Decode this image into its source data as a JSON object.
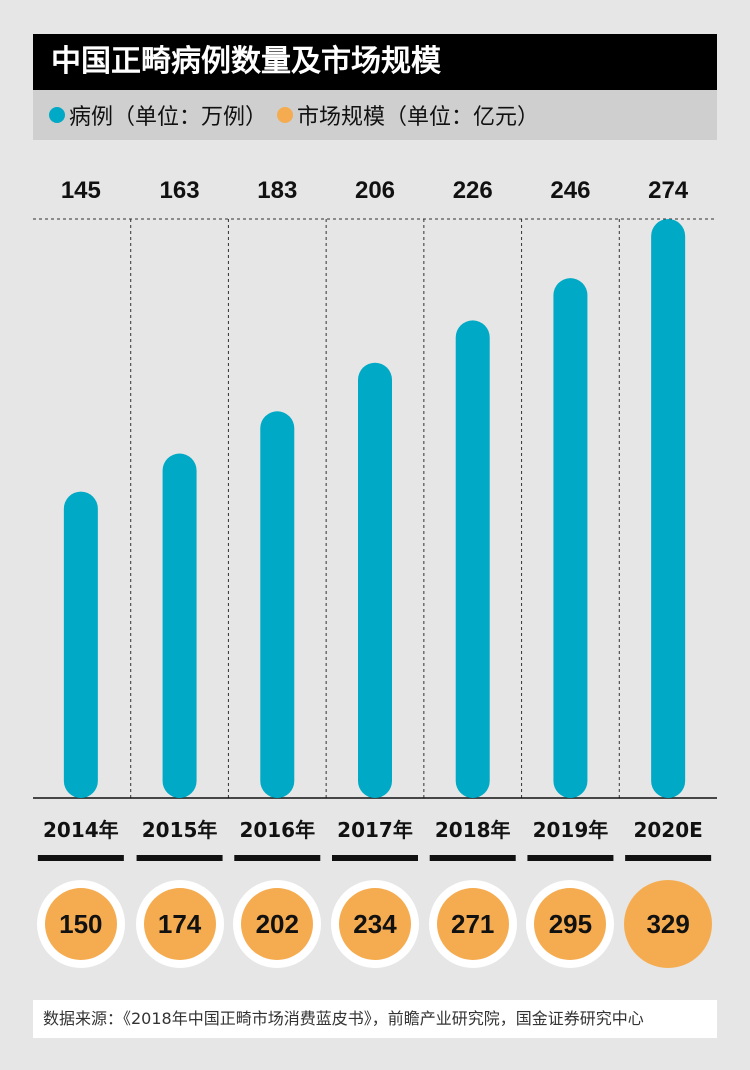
{
  "title": "中国正畸病例数量及市场规模",
  "legend": {
    "cases_label": "病例（单位：万例）",
    "market_label": "市场规模（单位：亿元）"
  },
  "colors": {
    "cases": "#00a9c5",
    "market": "#f5ac50"
  },
  "chart_data": {
    "type": "bar",
    "categories": [
      "2014年",
      "2015年",
      "2016年",
      "2017年",
      "2018年",
      "2019年",
      "2020E"
    ],
    "series": [
      {
        "name": "病例（单位：万例）",
        "values": [
          145,
          163,
          183,
          206,
          226,
          246,
          274
        ]
      },
      {
        "name": "市场规模（单位：亿元）",
        "values": [
          150,
          174,
          202,
          234,
          271,
          295,
          329
        ]
      }
    ]
  },
  "footer": "数据来源：《2018年中国正畸市场消费蓝皮书》，前瞻产业研究院，国金证券研究中心"
}
